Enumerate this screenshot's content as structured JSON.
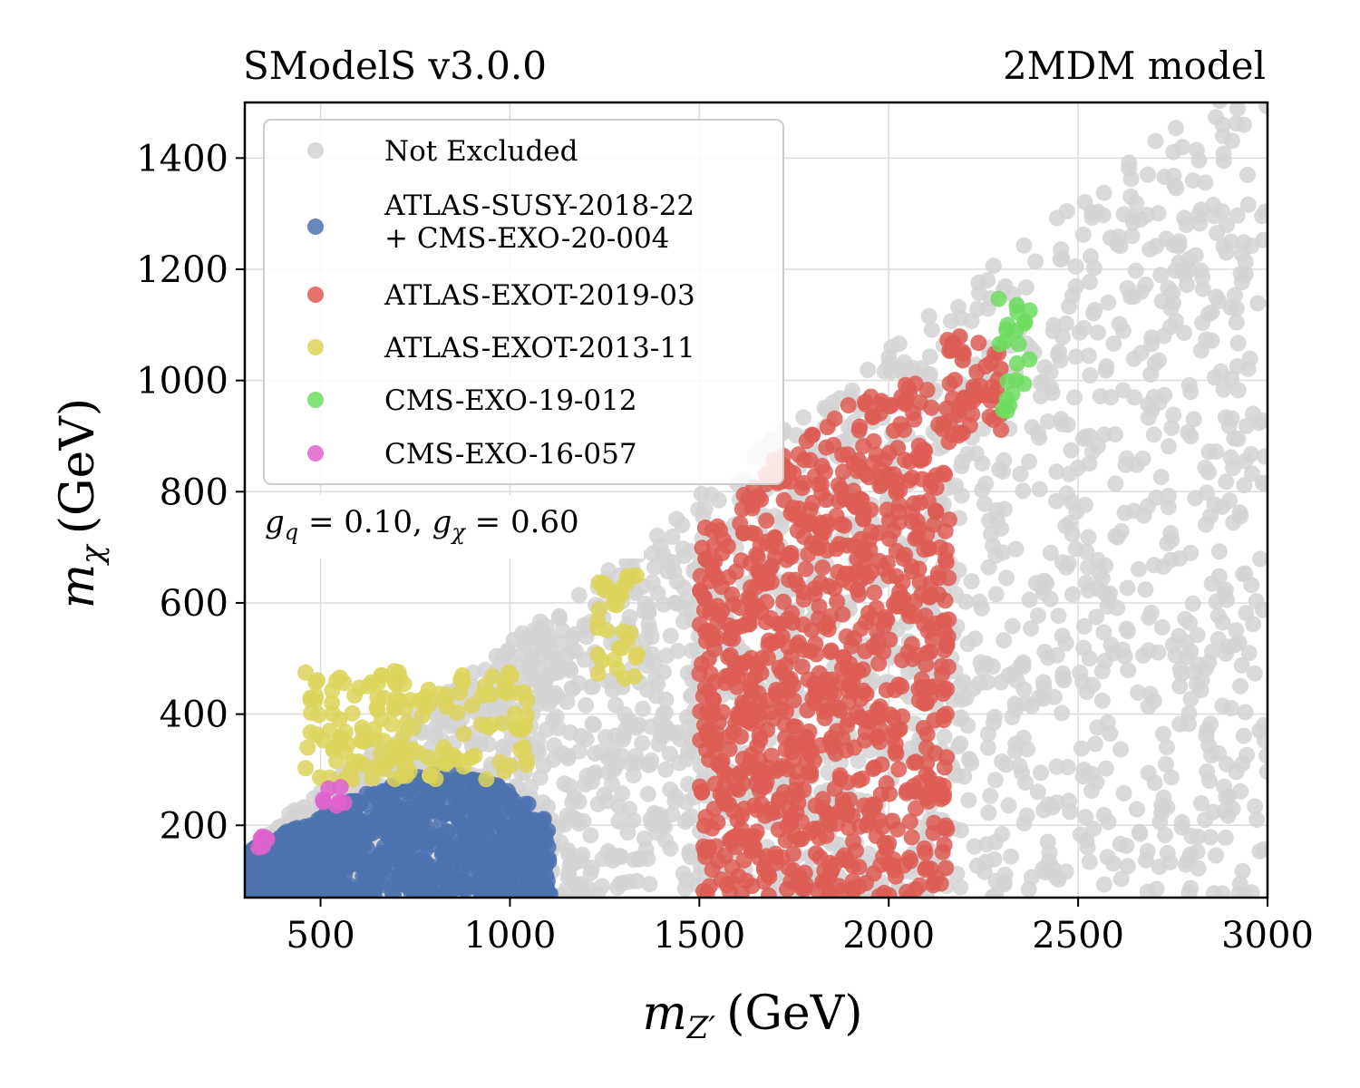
{
  "chart_data": {
    "type": "scatter",
    "title_left": "SModelS v3.0.0",
    "title_right": "2MDM model",
    "xlabel": {
      "symbol": "m",
      "subscript": "Z′",
      "unit": "(GeV)"
    },
    "ylabel": {
      "symbol": "m",
      "subscript": "χ",
      "unit": "(GeV)"
    },
    "xlim": [
      300,
      3000
    ],
    "ylim": [
      70,
      1500
    ],
    "xticks": [
      500,
      1000,
      1500,
      2000,
      2500,
      3000
    ],
    "yticks": [
      200,
      400,
      600,
      800,
      1000,
      1200,
      1400
    ],
    "grid": true,
    "legend_position": "top-left",
    "annotation": {
      "p1": "g",
      "s1": "q",
      "v1": " = 0.10, ",
      "p2": "g",
      "s2": "χ",
      "v2": " = 0.60"
    },
    "series": [
      {
        "name": "Not Excluded",
        "color": "#d3d3d3",
        "regions": [
          {
            "x": [
              300,
              3000
            ],
            "ymin": 70,
            "slope": 0.53,
            "intercept": 0,
            "n": 2300
          }
        ]
      },
      {
        "name": "ATLAS-SUSY-2018-22\n+ CMS-EXO-20-004",
        "color": "#4c72b0",
        "regions": [
          {
            "x": [
              300,
              1110
            ],
            "ymin": 70,
            "ytop": [
              [
                300,
                150
              ],
              [
                500,
                220
              ],
              [
                700,
                280
              ],
              [
                850,
                300
              ],
              [
                950,
                280
              ],
              [
                1050,
                240
              ],
              [
                1110,
                200
              ]
            ],
            "n": 900
          }
        ]
      },
      {
        "name": "ATLAS-EXOT-2019-03",
        "color": "#dd5c54",
        "regions": [
          {
            "x": [
              1500,
              2160
            ],
            "ymin": 70,
            "ytop": [
              [
                1500,
                740
              ],
              [
                1600,
                780
              ],
              [
                1700,
                860
              ],
              [
                1800,
                920
              ],
              [
                1900,
                960
              ],
              [
                2000,
                1000
              ],
              [
                2100,
                1000
              ],
              [
                2160,
                900
              ]
            ],
            "n": 950
          },
          {
            "x": [
              2150,
              2300
            ],
            "ymin": 900,
            "ymax": 1080,
            "n": 50
          }
        ]
      },
      {
        "name": "ATLAS-EXOT-2013-11",
        "color": "#dcd35a",
        "regions": [
          {
            "x": [
              460,
              1050
            ],
            "ymin": 280,
            "ymax": 480,
            "n": 160
          },
          {
            "x": [
              1230,
              1340
            ],
            "ymin": 460,
            "ymax": 650,
            "n": 35
          }
        ]
      },
      {
        "name": "CMS-EXO-19-012",
        "color": "#6ddd5f",
        "regions": [
          {
            "x": [
              2290,
              2380
            ],
            "ymin": 940,
            "ymax": 1150,
            "n": 22
          }
        ]
      },
      {
        "name": "CMS-EXO-16-057",
        "color": "#df62cc",
        "regions": [
          {
            "x": [
              335,
              360
            ],
            "ymin": 155,
            "ymax": 180,
            "n": 8
          },
          {
            "x": [
              495,
              565
            ],
            "ymin": 235,
            "ymax": 270,
            "n": 7
          }
        ]
      }
    ]
  }
}
